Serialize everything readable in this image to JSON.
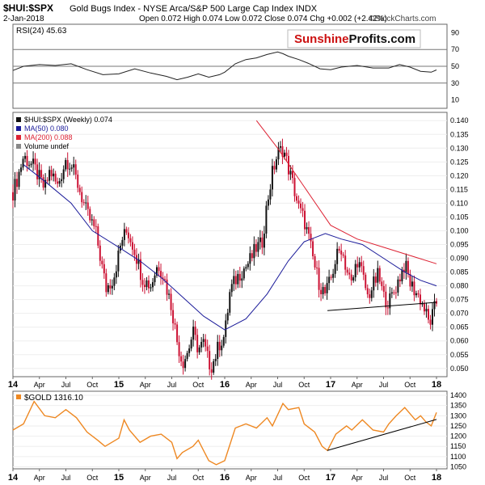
{
  "header": {
    "symbol": "$HUI:$SPX",
    "description": "Gold Bugs Index - NYSE Arca/S&P 500 Large Cap Index INDX",
    "date": "2-Jan-2018",
    "ohlc": "Open 0.072  High 0.074  Low 0.072  Close 0.074  Chg +0.002 (+2.42%)",
    "watermark": "©StockCharts.com",
    "logo_a": "Sunshine",
    "logo_b": "Profits.com"
  },
  "colors": {
    "price_up": "#111111",
    "price_down": "#cc1133",
    "ma50": "#1a1a99",
    "ma200": "#dd2233",
    "gold": "#ee8822",
    "support": "#000000",
    "logo_red": "#cc1111"
  },
  "chart_data": [
    {
      "panel": "rsi",
      "type": "line",
      "title": "RSI(24) 45.63",
      "ylim": [
        0,
        100
      ],
      "y_ticks": [
        90,
        70,
        50,
        30,
        10
      ],
      "reference_lines": [
        70,
        50,
        30
      ],
      "t_range": [
        2014.0,
        2018.0
      ],
      "series": [
        {
          "name": "RSI(24)",
          "points": [
            [
              2014.0,
              45
            ],
            [
              2014.1,
              50
            ],
            [
              2014.25,
              52
            ],
            [
              2014.4,
              51
            ],
            [
              2014.55,
              53
            ],
            [
              2014.7,
              46
            ],
            [
              2014.85,
              40
            ],
            [
              2015.0,
              41
            ],
            [
              2015.15,
              47
            ],
            [
              2015.3,
              42
            ],
            [
              2015.45,
              38
            ],
            [
              2015.55,
              34
            ],
            [
              2015.65,
              37
            ],
            [
              2015.75,
              41
            ],
            [
              2015.85,
              37
            ],
            [
              2015.95,
              40
            ],
            [
              2016.0,
              43
            ],
            [
              2016.1,
              53
            ],
            [
              2016.2,
              58
            ],
            [
              2016.3,
              60
            ],
            [
              2016.4,
              64
            ],
            [
              2016.5,
              67
            ],
            [
              2016.55,
              65
            ],
            [
              2016.6,
              62
            ],
            [
              2016.7,
              58
            ],
            [
              2016.8,
              53
            ],
            [
              2016.9,
              47
            ],
            [
              2017.0,
              46
            ],
            [
              2017.1,
              49
            ],
            [
              2017.25,
              51
            ],
            [
              2017.4,
              48
            ],
            [
              2017.55,
              48
            ],
            [
              2017.65,
              52
            ],
            [
              2017.75,
              49
            ],
            [
              2017.85,
              44
            ],
            [
              2017.95,
              43
            ],
            [
              2018.0,
              45.63
            ]
          ]
        }
      ]
    },
    {
      "panel": "ratio",
      "type": "candlestick",
      "title": "$HUI:$SPX (Weekly) 0.074",
      "ylim": [
        0.047,
        0.143
      ],
      "y_ticks": [
        0.14,
        0.135,
        0.13,
        0.125,
        0.12,
        0.115,
        0.11,
        0.105,
        0.1,
        0.095,
        0.09,
        0.085,
        0.08,
        0.075,
        0.07,
        0.065,
        0.06,
        0.055,
        0.05
      ],
      "x_ticks": [
        "14",
        "Apr",
        "Jul",
        "Oct",
        "15",
        "Apr",
        "Jul",
        "Oct",
        "16",
        "Apr",
        "Jul",
        "Oct",
        "17",
        "Apr",
        "Jul",
        "Oct",
        "18"
      ],
      "x_tick_t": [
        2014.0,
        2014.25,
        2014.5,
        2014.75,
        2015.0,
        2015.25,
        2015.5,
        2015.75,
        2016.0,
        2016.25,
        2016.5,
        2016.75,
        2017.0,
        2017.25,
        2017.5,
        2017.75,
        2018.0
      ],
      "legend": [
        "$HUI:$SPX (Weekly) 0.074",
        "MA(50) 0.080",
        "MA(200) 0.088",
        "Volume undef"
      ],
      "price_path": [
        [
          2014.0,
          0.114
        ],
        [
          2014.05,
          0.12
        ],
        [
          2014.1,
          0.127
        ],
        [
          2014.2,
          0.123
        ],
        [
          2014.3,
          0.115
        ],
        [
          2014.35,
          0.122
        ],
        [
          2014.42,
          0.116
        ],
        [
          2014.5,
          0.126
        ],
        [
          2014.55,
          0.124
        ],
        [
          2014.62,
          0.116
        ],
        [
          2014.7,
          0.106
        ],
        [
          2014.78,
          0.1
        ],
        [
          2014.85,
          0.085
        ],
        [
          2014.88,
          0.079
        ],
        [
          2014.95,
          0.083
        ],
        [
          2015.03,
          0.097
        ],
        [
          2015.08,
          0.1
        ],
        [
          2015.15,
          0.093
        ],
        [
          2015.22,
          0.083
        ],
        [
          2015.3,
          0.08
        ],
        [
          2015.37,
          0.088
        ],
        [
          2015.42,
          0.084
        ],
        [
          2015.5,
          0.072
        ],
        [
          2015.55,
          0.06
        ],
        [
          2015.6,
          0.052
        ],
        [
          2015.65,
          0.056
        ],
        [
          2015.7,
          0.063
        ],
        [
          2015.75,
          0.057
        ],
        [
          2015.8,
          0.059
        ],
        [
          2015.85,
          0.052
        ],
        [
          2015.88,
          0.051
        ],
        [
          2015.95,
          0.059
        ],
        [
          2016.0,
          0.062
        ],
        [
          2016.05,
          0.078
        ],
        [
          2016.1,
          0.082
        ],
        [
          2016.15,
          0.085
        ],
        [
          2016.2,
          0.087
        ],
        [
          2016.25,
          0.09
        ],
        [
          2016.3,
          0.094
        ],
        [
          2016.35,
          0.095
        ],
        [
          2016.4,
          0.11
        ],
        [
          2016.45,
          0.121
        ],
        [
          2016.5,
          0.128
        ],
        [
          2016.55,
          0.13
        ],
        [
          2016.6,
          0.123
        ],
        [
          2016.65,
          0.116
        ],
        [
          2016.7,
          0.108
        ],
        [
          2016.75,
          0.104
        ],
        [
          2016.8,
          0.096
        ],
        [
          2016.85,
          0.087
        ],
        [
          2016.9,
          0.08
        ],
        [
          2016.95,
          0.077
        ],
        [
          2017.0,
          0.082
        ],
        [
          2017.05,
          0.09
        ],
        [
          2017.1,
          0.094
        ],
        [
          2017.15,
          0.086
        ],
        [
          2017.2,
          0.08
        ],
        [
          2017.25,
          0.09
        ],
        [
          2017.3,
          0.084
        ],
        [
          2017.35,
          0.076
        ],
        [
          2017.4,
          0.08
        ],
        [
          2017.45,
          0.084
        ],
        [
          2017.5,
          0.076
        ],
        [
          2017.55,
          0.074
        ],
        [
          2017.6,
          0.078
        ],
        [
          2017.65,
          0.083
        ],
        [
          2017.7,
          0.088
        ],
        [
          2017.75,
          0.081
        ],
        [
          2017.8,
          0.078
        ],
        [
          2017.85,
          0.075
        ],
        [
          2017.9,
          0.07
        ],
        [
          2017.93,
          0.066
        ],
        [
          2017.96,
          0.069
        ],
        [
          2018.0,
          0.074
        ]
      ],
      "ma50": [
        [
          2014.1,
          0.124
        ],
        [
          2014.3,
          0.118
        ],
        [
          2014.55,
          0.11
        ],
        [
          2014.75,
          0.1
        ],
        [
          2015.0,
          0.094
        ],
        [
          2015.2,
          0.089
        ],
        [
          2015.4,
          0.083
        ],
        [
          2015.6,
          0.076
        ],
        [
          2015.8,
          0.069
        ],
        [
          2016.0,
          0.064
        ],
        [
          2016.2,
          0.068
        ],
        [
          2016.4,
          0.077
        ],
        [
          2016.6,
          0.089
        ],
        [
          2016.75,
          0.096
        ],
        [
          2016.95,
          0.099
        ],
        [
          2017.1,
          0.097
        ],
        [
          2017.3,
          0.095
        ],
        [
          2017.5,
          0.09
        ],
        [
          2017.7,
          0.085
        ],
        [
          2017.85,
          0.082
        ],
        [
          2018.0,
          0.08
        ]
      ],
      "ma200": [
        [
          2016.3,
          0.14
        ],
        [
          2016.5,
          0.13
        ],
        [
          2016.75,
          0.116
        ],
        [
          2017.0,
          0.102
        ],
        [
          2017.25,
          0.097
        ],
        [
          2017.5,
          0.094
        ],
        [
          2017.75,
          0.091
        ],
        [
          2018.0,
          0.088
        ]
      ],
      "support_line": [
        [
          2016.97,
          0.071
        ],
        [
          2018.0,
          0.074
        ]
      ]
    },
    {
      "panel": "gold",
      "type": "line",
      "title": "$GOLD 1316.10",
      "ylim": [
        1040,
        1420
      ],
      "y_ticks": [
        1400,
        1350,
        1300,
        1250,
        1200,
        1150,
        1100,
        1050
      ],
      "x_ticks": [
        "14",
        "Apr",
        "Jul",
        "Oct",
        "15",
        "Apr",
        "Jul",
        "Oct",
        "16",
        "Apr",
        "Jul",
        "Oct",
        "17",
        "Apr",
        "Jul",
        "Oct",
        "18"
      ],
      "x_tick_t": [
        2014.0,
        2014.25,
        2014.5,
        2014.75,
        2015.0,
        2015.25,
        2015.5,
        2015.75,
        2016.0,
        2016.25,
        2016.5,
        2016.75,
        2017.0,
        2017.25,
        2017.5,
        2017.75,
        2018.0
      ],
      "series": [
        {
          "name": "$GOLD",
          "points": [
            [
              2014.0,
              1230
            ],
            [
              2014.1,
              1260
            ],
            [
              2014.2,
              1370
            ],
            [
              2014.3,
              1300
            ],
            [
              2014.4,
              1290
            ],
            [
              2014.5,
              1330
            ],
            [
              2014.6,
              1290
            ],
            [
              2014.7,
              1220
            ],
            [
              2014.8,
              1180
            ],
            [
              2014.87,
              1150
            ],
            [
              2015.0,
              1190
            ],
            [
              2015.05,
              1280
            ],
            [
              2015.1,
              1230
            ],
            [
              2015.2,
              1170
            ],
            [
              2015.3,
              1200
            ],
            [
              2015.4,
              1210
            ],
            [
              2015.5,
              1170
            ],
            [
              2015.55,
              1090
            ],
            [
              2015.6,
              1120
            ],
            [
              2015.7,
              1150
            ],
            [
              2015.75,
              1180
            ],
            [
              2015.85,
              1080
            ],
            [
              2015.92,
              1060
            ],
            [
              2016.0,
              1080
            ],
            [
              2016.1,
              1240
            ],
            [
              2016.2,
              1260
            ],
            [
              2016.3,
              1240
            ],
            [
              2016.4,
              1290
            ],
            [
              2016.45,
              1250
            ],
            [
              2016.55,
              1360
            ],
            [
              2016.6,
              1330
            ],
            [
              2016.7,
              1340
            ],
            [
              2016.75,
              1260
            ],
            [
              2016.85,
              1220
            ],
            [
              2016.92,
              1150
            ],
            [
              2016.97,
              1130
            ],
            [
              2017.05,
              1210
            ],
            [
              2017.15,
              1250
            ],
            [
              2017.2,
              1230
            ],
            [
              2017.3,
              1280
            ],
            [
              2017.4,
              1230
            ],
            [
              2017.5,
              1220
            ],
            [
              2017.55,
              1260
            ],
            [
              2017.62,
              1300
            ],
            [
              2017.7,
              1340
            ],
            [
              2017.8,
              1280
            ],
            [
              2017.85,
              1300
            ],
            [
              2017.9,
              1270
            ],
            [
              2017.95,
              1250
            ],
            [
              2018.0,
              1316.1
            ]
          ]
        }
      ],
      "support_line": [
        [
          2016.97,
          1130
        ],
        [
          2018.0,
          1282
        ]
      ]
    }
  ]
}
